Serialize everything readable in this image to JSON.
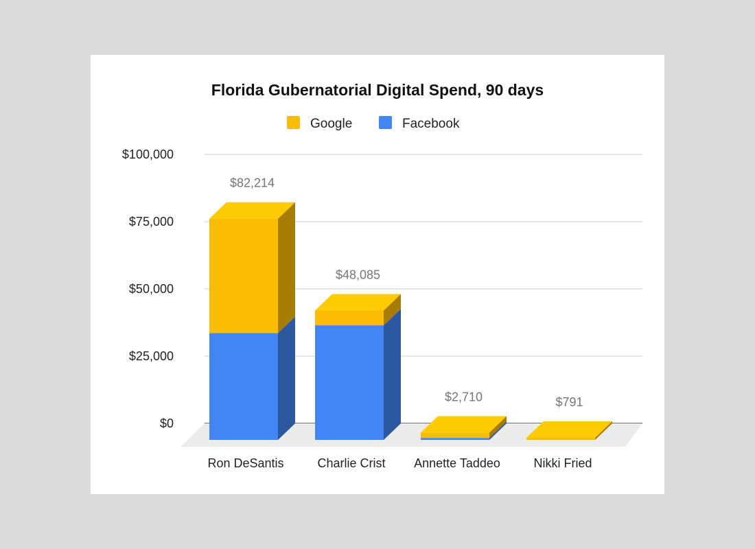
{
  "chart_data": {
    "type": "bar",
    "stacked": true,
    "three_d": true,
    "title": "Florida Gubernatorial Digital Spend, 90 days",
    "categories": [
      "Ron DeSantis",
      "Charlie Crist",
      "Annette Taddeo",
      "Nikki Fried"
    ],
    "series": [
      {
        "name": "Google",
        "color": "#fbbc04",
        "values": [
          42500,
          5500,
          2000,
          791
        ]
      },
      {
        "name": "Facebook",
        "color": "#4285f4",
        "values": [
          39714,
          42585,
          710,
          0
        ]
      }
    ],
    "totals": [
      "$82,214",
      "$48,085",
      "$2,710",
      "$791"
    ],
    "y_ticks": [
      0,
      25000,
      50000,
      75000,
      100000
    ],
    "y_tick_labels": [
      "$0",
      "$25,000",
      "$50,000",
      "$75,000",
      "$100,000"
    ],
    "ylim": [
      0,
      100000
    ],
    "xlabel": "",
    "ylabel": "",
    "grid": true,
    "legend_position": "top"
  }
}
